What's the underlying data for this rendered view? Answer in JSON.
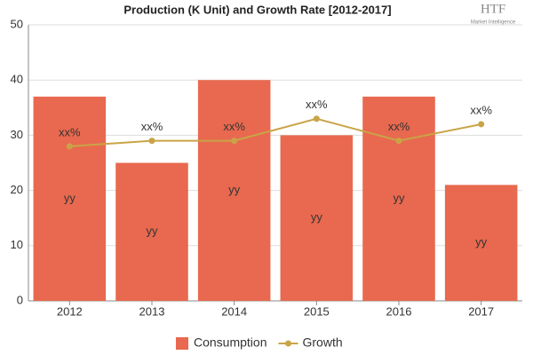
{
  "chart_data": {
    "type": "bar",
    "title": "Production (K Unit) and Growth Rate [2012-2017]",
    "logo": {
      "text": "HTF",
      "subtext": "Market Intelligence"
    },
    "categories": [
      "2012",
      "2013",
      "2014",
      "2015",
      "2016",
      "2017"
    ],
    "series": [
      {
        "name": "Consumption",
        "type": "bar",
        "color": "#e8694f",
        "values": [
          37,
          25,
          40,
          30,
          37,
          21
        ],
        "labels": [
          "yy",
          "yy",
          "yy",
          "yy",
          "yy",
          "yy"
        ]
      },
      {
        "name": "Growth",
        "type": "line",
        "color": "#c9a447",
        "values": [
          28,
          29,
          29,
          33,
          29,
          32
        ],
        "labels": [
          "xx%",
          "xx%",
          "xx%",
          "xx%",
          "xx%",
          "xx%"
        ]
      }
    ],
    "ylim": [
      0,
      50
    ],
    "yticks": [
      0,
      10,
      20,
      30,
      40,
      50
    ],
    "grid": true,
    "legend": "bottom"
  }
}
